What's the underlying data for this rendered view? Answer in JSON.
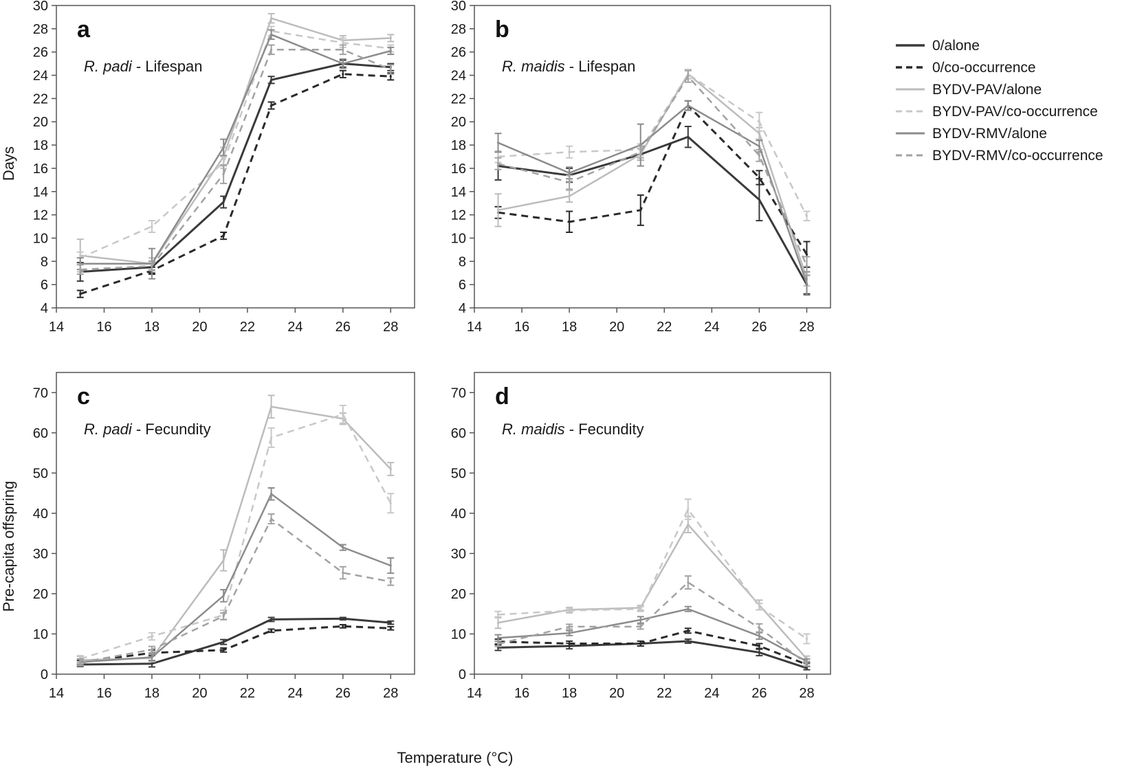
{
  "figure": {
    "xlabel": "Temperature (°C)",
    "ylabel_top": "Days",
    "ylabel_bottom": "Pre-capita offspring"
  },
  "legend": [
    {
      "key": "0_alone",
      "label": "0/alone"
    },
    {
      "key": "0_co",
      "label": "0/co-occurrence"
    },
    {
      "key": "pav_alone",
      "label": "BYDV-PAV/alone"
    },
    {
      "key": "pav_co",
      "label": "BYDV-PAV/co-occurrence"
    },
    {
      "key": "rmv_alone",
      "label": "BYDV-RMV/alone"
    },
    {
      "key": "rmv_co",
      "label": "BYDV-RMV/co-occurrence"
    }
  ],
  "styles": {
    "0_alone": {
      "color": "#3a3a3a",
      "dash": "",
      "width": 3
    },
    "0_co": {
      "color": "#2a2a2a",
      "dash": "10,7",
      "width": 3
    },
    "pav_alone": {
      "color": "#bcbcbc",
      "dash": "",
      "width": 2.5
    },
    "pav_co": {
      "color": "#c8c8c8",
      "dash": "10,7",
      "width": 2.5
    },
    "rmv_alone": {
      "color": "#8c8c8c",
      "dash": "",
      "width": 2.5
    },
    "rmv_co": {
      "color": "#a2a2a2",
      "dash": "10,7",
      "width": 2.5
    }
  },
  "chart_data": [
    {
      "panel": "a",
      "species": "R. padi",
      "metric": " - Lifespan",
      "type": "line",
      "x": [
        15,
        18,
        21,
        23,
        26,
        28
      ],
      "xlim": [
        14,
        29
      ],
      "ylim": [
        4,
        30
      ],
      "xticks": [
        14,
        16,
        18,
        20,
        22,
        24,
        26,
        28
      ],
      "yticks": [
        4,
        6,
        8,
        10,
        12,
        14,
        16,
        18,
        20,
        22,
        24,
        26,
        28,
        30
      ],
      "series": [
        {
          "key": "0_alone",
          "values": [
            7.1,
            7.5,
            13.1,
            23.6,
            25.0,
            24.7
          ],
          "err": [
            0.8,
            0.5,
            0.5,
            0.3,
            0.3,
            0.3
          ]
        },
        {
          "key": "0_co",
          "values": [
            5.2,
            7.2,
            10.2,
            21.4,
            24.1,
            23.9
          ],
          "err": [
            0.3,
            0.3,
            0.3,
            0.3,
            0.3,
            0.3
          ]
        },
        {
          "key": "pav_alone",
          "values": [
            8.5,
            7.8,
            17.0,
            28.9,
            27.0,
            27.2
          ],
          "err": [
            1.4,
            0.5,
            0.8,
            0.4,
            0.4,
            0.3
          ]
        },
        {
          "key": "pav_co",
          "values": [
            8.3,
            11.0,
            16.5,
            27.8,
            26.8,
            26.3
          ],
          "err": [
            0.5,
            0.5,
            0.5,
            0.4,
            0.4,
            0.3
          ]
        },
        {
          "key": "rmv_alone",
          "values": [
            7.8,
            7.8,
            17.8,
            27.5,
            25.0,
            26.1
          ],
          "err": [
            0.5,
            1.3,
            0.7,
            0.4,
            0.4,
            0.3
          ]
        },
        {
          "key": "rmv_co",
          "values": [
            7.3,
            7.6,
            15.5,
            26.2,
            26.2,
            24.5
          ],
          "err": [
            0.4,
            0.4,
            0.8,
            0.4,
            0.4,
            0.4
          ]
        }
      ]
    },
    {
      "panel": "b",
      "species": "R. maidis",
      "metric": " - Lifespan",
      "type": "line",
      "x": [
        15,
        18,
        21,
        23,
        26,
        28
      ],
      "xlim": [
        14,
        29
      ],
      "ylim": [
        4,
        30
      ],
      "xticks": [
        14,
        16,
        18,
        20,
        22,
        24,
        26,
        28
      ],
      "yticks": [
        4,
        6,
        8,
        10,
        12,
        14,
        16,
        18,
        20,
        22,
        24,
        26,
        28,
        30
      ],
      "series": [
        {
          "key": "0_alone",
          "values": [
            16.2,
            15.4,
            17.2,
            18.7,
            13.3,
            6.0
          ],
          "err": [
            1.2,
            0.6,
            0.5,
            0.9,
            1.8,
            0.8
          ]
        },
        {
          "key": "0_co",
          "values": [
            12.2,
            11.4,
            12.4,
            21.4,
            15.2,
            8.6
          ],
          "err": [
            0.5,
            0.9,
            1.3,
            0.4,
            0.6,
            1.1
          ]
        },
        {
          "key": "pav_alone",
          "values": [
            12.4,
            13.6,
            17.2,
            24.1,
            19.0,
            6.5
          ],
          "err": [
            1.4,
            0.5,
            0.5,
            0.4,
            0.5,
            0.6
          ]
        },
        {
          "key": "pav_co",
          "values": [
            17.0,
            17.4,
            17.6,
            24.1,
            20.0,
            11.9
          ],
          "err": [
            0.5,
            0.5,
            0.5,
            0.4,
            0.8,
            0.4
          ]
        },
        {
          "key": "rmv_alone",
          "values": [
            18.2,
            15.6,
            18.0,
            21.4,
            17.9,
            6.1
          ],
          "err": [
            0.8,
            0.5,
            1.8,
            0.4,
            0.5,
            1.0
          ]
        },
        {
          "key": "rmv_co",
          "values": [
            16.4,
            14.8,
            17.4,
            23.9,
            17.1,
            7.6
          ],
          "err": [
            0.5,
            0.6,
            0.5,
            0.5,
            0.5,
            0.8
          ]
        }
      ]
    },
    {
      "panel": "c",
      "species": "R. padi",
      "metric": " - Fecundity",
      "type": "line",
      "x": [
        15,
        18,
        21,
        23,
        26,
        28
      ],
      "xlim": [
        14,
        29
      ],
      "ylim": [
        0,
        75
      ],
      "xticks": [
        14,
        16,
        18,
        20,
        22,
        24,
        26,
        28
      ],
      "yticks": [
        0,
        10,
        20,
        30,
        40,
        50,
        60,
        70
      ],
      "series": [
        {
          "key": "0_alone",
          "values": [
            2.4,
            2.6,
            8.0,
            13.6,
            13.8,
            12.8
          ],
          "err": [
            0.5,
            0.8,
            0.6,
            0.5,
            0.3,
            0.4
          ]
        },
        {
          "key": "0_co",
          "values": [
            2.9,
            5.3,
            6.0,
            10.8,
            11.9,
            11.4
          ],
          "err": [
            0.5,
            0.7,
            0.5,
            0.4,
            0.4,
            0.4
          ]
        },
        {
          "key": "pav_alone",
          "values": [
            3.5,
            4.0,
            28.3,
            66.5,
            63.5,
            51.0
          ],
          "err": [
            0.9,
            0.9,
            2.6,
            2.8,
            1.4,
            1.6
          ]
        },
        {
          "key": "pav_co",
          "values": [
            3.8,
            9.4,
            14.7,
            58.8,
            64.6,
            42.5
          ],
          "err": [
            0.8,
            0.9,
            1.2,
            2.4,
            2.2,
            2.4
          ]
        },
        {
          "key": "rmv_alone",
          "values": [
            3.0,
            4.2,
            19.5,
            44.8,
            31.5,
            27.0
          ],
          "err": [
            0.8,
            0.8,
            1.5,
            1.5,
            0.7,
            1.9
          ]
        },
        {
          "key": "rmv_co",
          "values": [
            2.9,
            6.1,
            14.4,
            38.6,
            25.2,
            23.0
          ],
          "err": [
            0.8,
            0.8,
            0.8,
            1.2,
            1.5,
            0.9
          ]
        }
      ]
    },
    {
      "panel": "d",
      "species": "R. maidis",
      "metric": " - Fecundity",
      "type": "line",
      "x": [
        15,
        18,
        21,
        23,
        26,
        28
      ],
      "xlim": [
        14,
        29
      ],
      "ylim": [
        0,
        75
      ],
      "xticks": [
        14,
        16,
        18,
        20,
        22,
        24,
        26,
        28
      ],
      "yticks": [
        0,
        10,
        20,
        30,
        40,
        50,
        60,
        70
      ],
      "series": [
        {
          "key": "0_alone",
          "values": [
            6.6,
            7.0,
            7.6,
            8.2,
            5.4,
            1.5
          ],
          "err": [
            0.7,
            0.7,
            0.6,
            0.5,
            0.8,
            0.4
          ]
        },
        {
          "key": "0_co",
          "values": [
            8.1,
            7.6,
            7.6,
            10.8,
            7.0,
            2.4
          ],
          "err": [
            0.6,
            0.6,
            0.6,
            0.6,
            0.6,
            0.4
          ]
        },
        {
          "key": "pav_alone",
          "values": [
            12.8,
            16.0,
            16.5,
            37.2,
            17.2,
            3.8
          ],
          "err": [
            1.4,
            0.6,
            0.6,
            2.0,
            1.2,
            0.7
          ]
        },
        {
          "key": "pav_co",
          "values": [
            14.8,
            15.8,
            16.2,
            41.0,
            16.8,
            8.8
          ],
          "err": [
            0.8,
            0.6,
            0.6,
            2.5,
            0.8,
            1.2
          ]
        },
        {
          "key": "rmv_alone",
          "values": [
            9.0,
            10.2,
            13.5,
            16.2,
            9.5,
            3.2
          ],
          "err": [
            0.8,
            0.6,
            0.8,
            0.6,
            0.8,
            0.6
          ]
        },
        {
          "key": "rmv_co",
          "values": [
            7.5,
            11.8,
            11.8,
            22.8,
            11.5,
            2.6
          ],
          "err": [
            0.6,
            0.6,
            0.6,
            1.6,
            1.0,
            0.6
          ]
        }
      ]
    }
  ]
}
